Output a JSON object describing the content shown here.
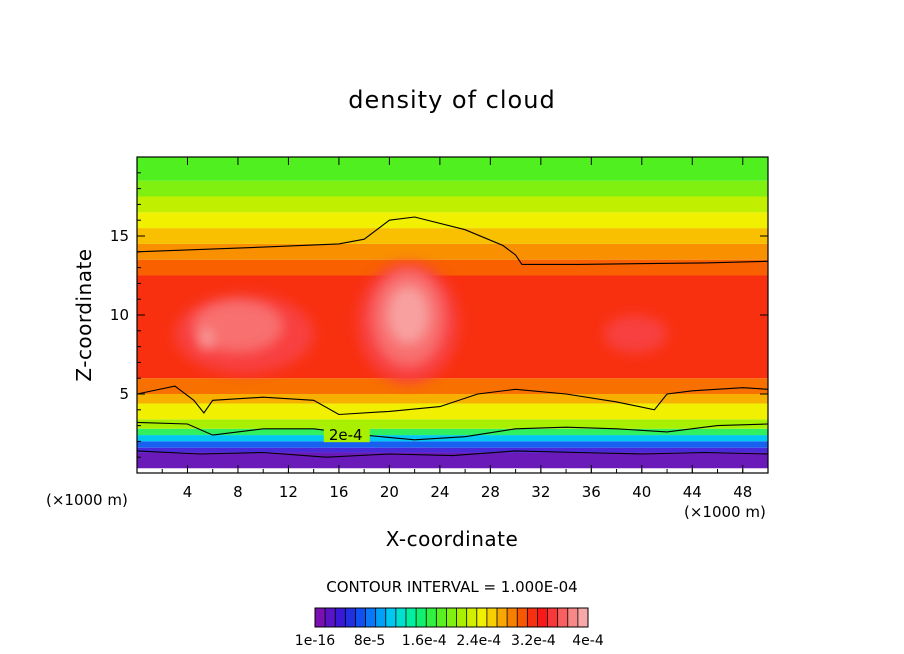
{
  "chart_data": {
    "type": "heatmap",
    "title": "density of cloud",
    "xlabel": "X-coordinate",
    "ylabel": "Z-coordinate",
    "x_unit_label": "(×1000 m)",
    "y_unit_label": "(×1000 m)",
    "xlim": [
      0,
      50
    ],
    "ylim": [
      0,
      20
    ],
    "xticks": [
      "4",
      "8",
      "12",
      "16",
      "20",
      "24",
      "28",
      "32",
      "36",
      "40",
      "44",
      "48"
    ],
    "yticks": [
      "5",
      "10",
      "15"
    ],
    "contour_interval_text": "CONTOUR INTERVAL = 1.000E-04",
    "contour_label": "2e-4",
    "colorbar": {
      "labels": [
        "1e-16",
        "8e-5",
        "1.6e-4",
        "2.4e-4",
        "3.2e-4",
        "4e-4"
      ],
      "colors": [
        "#7a10b0",
        "#5a14c8",
        "#3a18d8",
        "#2030e0",
        "#1050f0",
        "#0878f8",
        "#00a0f8",
        "#00c8f0",
        "#00e0d0",
        "#00f0a0",
        "#10f070",
        "#30f040",
        "#58f020",
        "#80f010",
        "#a8f000",
        "#d0f000",
        "#f0f000",
        "#f8d000",
        "#f8a800",
        "#f88000",
        "#f85800",
        "#f83010",
        "#f81818",
        "#f83838",
        "#f86060",
        "#f88888",
        "#f8a8a8"
      ]
    },
    "bands": [
      {
        "z": [
          0.3,
          1.3
        ],
        "color": "#6a1ab8"
      },
      {
        "z": [
          1.3,
          1.6
        ],
        "color": "#4a2ad8"
      },
      {
        "z": [
          1.6,
          2.0
        ],
        "color": "#1860f0"
      },
      {
        "z": [
          2.0,
          2.4
        ],
        "color": "#00c8f0"
      },
      {
        "z": [
          2.4,
          2.8
        ],
        "color": "#30f060"
      },
      {
        "z": [
          2.8,
          3.4
        ],
        "color": "#a8f000"
      },
      {
        "z": [
          3.4,
          4.4
        ],
        "color": "#f0f000"
      },
      {
        "z": [
          4.4,
          5.0
        ],
        "color": "#f8b000"
      },
      {
        "z": [
          5.0,
          6.0
        ],
        "color": "#f87000"
      },
      {
        "z": [
          6.0,
          12.5
        ],
        "color": "#f83010"
      },
      {
        "z": [
          12.5,
          13.5
        ],
        "color": "#f86000"
      },
      {
        "z": [
          13.5,
          14.5
        ],
        "color": "#f89000"
      },
      {
        "z": [
          14.5,
          15.5
        ],
        "color": "#f8c000"
      },
      {
        "z": [
          15.5,
          16.5
        ],
        "color": "#f0f000"
      },
      {
        "z": [
          16.5,
          17.5
        ],
        "color": "#c0f000"
      },
      {
        "z": [
          17.5,
          18.5
        ],
        "color": "#80f010"
      },
      {
        "z": [
          18.5,
          20.0
        ],
        "color": "#50f020"
      }
    ],
    "core_blobs": [
      {
        "x": 8.5,
        "z": 8.8,
        "rx": 5.5,
        "rz": 2.5,
        "color": "#f84040"
      },
      {
        "x": 21.5,
        "z": 9.5,
        "rx": 4.0,
        "rz": 3.8,
        "color": "#f84040"
      },
      {
        "x": 8.0,
        "z": 9.3,
        "rx": 3.5,
        "rz": 1.6,
        "color": "#f87070"
      },
      {
        "x": 21.5,
        "z": 9.8,
        "rx": 2.8,
        "rz": 3.0,
        "color": "#f87070"
      },
      {
        "x": 21.5,
        "z": 10.0,
        "rx": 1.6,
        "rz": 1.8,
        "color": "#f8a0a0"
      },
      {
        "x": 5.5,
        "z": 8.5,
        "rx": 0.5,
        "rz": 0.6,
        "color": "#f8a0a0"
      },
      {
        "x": 39.5,
        "z": 8.8,
        "rx": 2.5,
        "rz": 1.2,
        "color": "#f84040"
      }
    ],
    "contour_top": [
      [
        0,
        14.0
      ],
      [
        10,
        14.3
      ],
      [
        16,
        14.5
      ],
      [
        18,
        14.8
      ],
      [
        20,
        16.0
      ],
      [
        22,
        16.2
      ],
      [
        26,
        15.4
      ],
      [
        29,
        14.4
      ],
      [
        30,
        13.8
      ],
      [
        30.5,
        13.2
      ],
      [
        35,
        13.2
      ],
      [
        45,
        13.3
      ],
      [
        50,
        13.4
      ]
    ],
    "contour_mid": [
      [
        0,
        5.0
      ],
      [
        3,
        5.5
      ],
      [
        4.5,
        4.6
      ],
      [
        5.3,
        3.8
      ],
      [
        6,
        4.6
      ],
      [
        10,
        4.8
      ],
      [
        14,
        4.6
      ],
      [
        16,
        3.7
      ],
      [
        20,
        3.9
      ],
      [
        24,
        4.2
      ],
      [
        27,
        5.0
      ],
      [
        30,
        5.3
      ],
      [
        34,
        5.0
      ],
      [
        38,
        4.5
      ],
      [
        41,
        4.0
      ],
      [
        42,
        5.0
      ],
      [
        44,
        5.2
      ],
      [
        48,
        5.4
      ],
      [
        50,
        5.3
      ]
    ],
    "contour_low": [
      [
        0,
        3.2
      ],
      [
        4,
        3.1
      ],
      [
        6,
        2.4
      ],
      [
        10,
        2.8
      ],
      [
        14,
        2.8
      ],
      [
        18,
        2.4
      ],
      [
        22,
        2.1
      ],
      [
        26,
        2.3
      ],
      [
        30,
        2.8
      ],
      [
        34,
        2.9
      ],
      [
        38,
        2.8
      ],
      [
        42,
        2.6
      ],
      [
        46,
        3.0
      ],
      [
        50,
        3.1
      ]
    ],
    "contour_base": [
      [
        0,
        1.4
      ],
      [
        5,
        1.2
      ],
      [
        10,
        1.3
      ],
      [
        15,
        1.0
      ],
      [
        20,
        1.2
      ],
      [
        25,
        1.1
      ],
      [
        30,
        1.4
      ],
      [
        35,
        1.3
      ],
      [
        40,
        1.2
      ],
      [
        45,
        1.3
      ],
      [
        50,
        1.2
      ]
    ]
  }
}
